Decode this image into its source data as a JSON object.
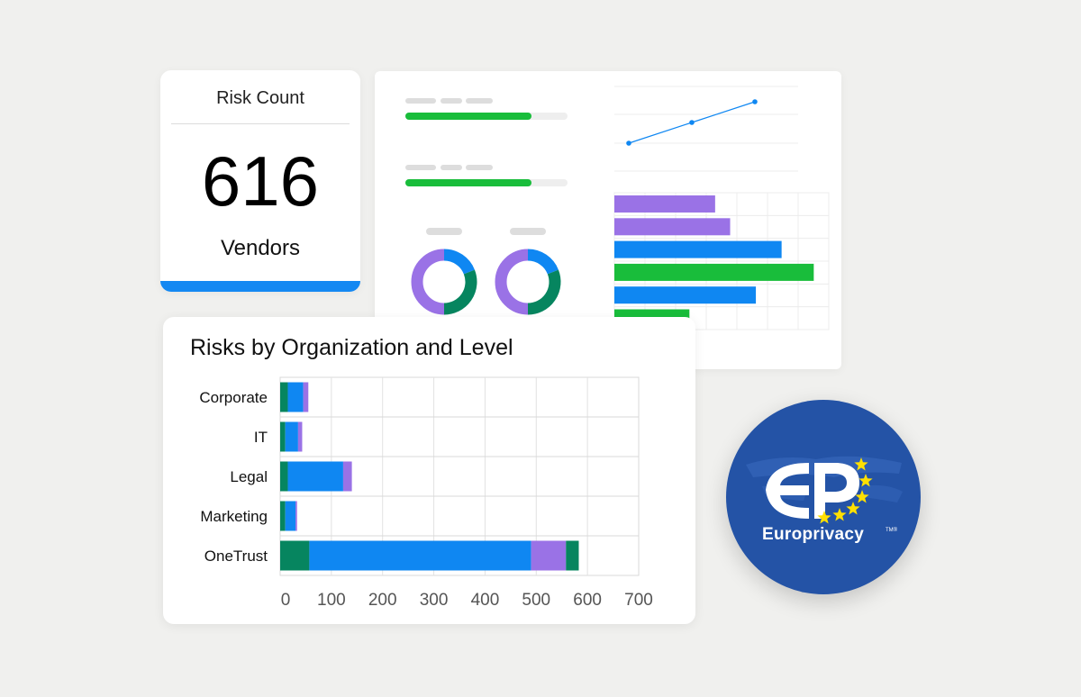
{
  "risk_card": {
    "title": "Risk Count",
    "count": "616",
    "subtitle": "Vendors",
    "accent": "#1488f2"
  },
  "colors": {
    "green_dark": "#06855f",
    "blue": "#0f87f2",
    "purple": "#9a72e6",
    "green_bright": "#19bd3b",
    "badge_blue": "#2453a6",
    "star_yellow": "#ffe000"
  },
  "badge": {
    "brand": "Europrivacy",
    "tm": "TM®"
  },
  "chart_data": {
    "type": "bar",
    "orientation": "horizontal",
    "stacked": true,
    "title": "Risks by Organization and Level",
    "categories": [
      "Corporate",
      "IT",
      "Legal",
      "Marketing",
      "OneTrust"
    ],
    "tick_labels": [
      "0",
      "100",
      "200",
      "300",
      "400",
      "500",
      "600",
      "700"
    ],
    "xlim": [
      0,
      700
    ],
    "grid": true,
    "series": [
      {
        "color": "#06855f",
        "values": [
          15,
          10,
          15,
          10,
          57
        ]
      },
      {
        "color": "#0f87f2",
        "values": [
          30,
          25,
          108,
          20,
          433
        ]
      },
      {
        "color": "#9a72e6",
        "values": [
          10,
          8,
          17,
          3,
          68
        ]
      },
      {
        "color": "#06855f",
        "values": [
          0,
          0,
          0,
          0,
          25
        ]
      }
    ]
  },
  "background_dashboard": {
    "progress": [
      0.78,
      0.78
    ],
    "line_values": [
      1,
      2,
      3
    ],
    "bars": [
      {
        "value": 0.47,
        "color": "#9a72e6"
      },
      {
        "value": 0.54,
        "color": "#9a72e6"
      },
      {
        "value": 0.78,
        "color": "#0f87f2"
      },
      {
        "value": 0.93,
        "color": "#19bd3b"
      },
      {
        "value": 0.66,
        "color": "#0f87f2"
      },
      {
        "value": 0.35,
        "color": "#19bd3b"
      }
    ],
    "donuts": [
      {
        "segments": [
          {
            "value": 0.19,
            "color": "#0f87f2"
          },
          {
            "value": 0.31,
            "color": "#06855f"
          },
          {
            "value": 0.5,
            "color": "#9a72e6"
          }
        ]
      },
      {
        "segments": [
          {
            "value": 0.19,
            "color": "#0f87f2"
          },
          {
            "value": 0.31,
            "color": "#06855f"
          },
          {
            "value": 0.5,
            "color": "#9a72e6"
          }
        ]
      }
    ]
  }
}
